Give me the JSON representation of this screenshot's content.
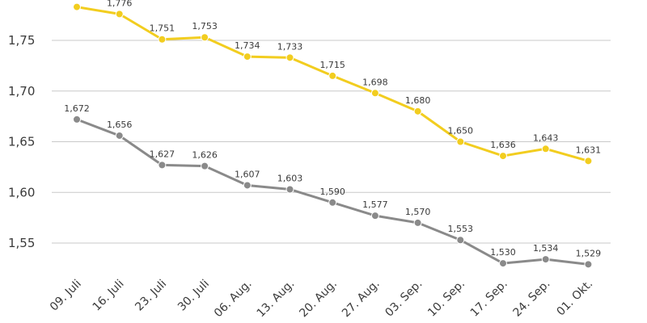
{
  "chart_data": {
    "type": "line",
    "categories": [
      "09. Juli",
      "16. Juli",
      "23. Juli",
      "30. Juli",
      "06. Aug.",
      "13. Aug.",
      "20. Aug.",
      "27. Aug.",
      "03. Sep.",
      "10. Sep.",
      "17. Sep.",
      "24. Sep.",
      "01. Okt."
    ],
    "series": [
      {
        "color": "#f2cd1f",
        "values": [
          1.783,
          1.776,
          1.751,
          1.753,
          1.734,
          1.733,
          1.715,
          1.698,
          1.68,
          1.65,
          1.636,
          1.643,
          1.631
        ],
        "labels": [
          "",
          "1,776",
          "1,751",
          "1,753",
          "1,734",
          "1,733",
          "1,715",
          "1,698",
          "1,680",
          "1,650",
          "1,636",
          "1,643",
          "1,631"
        ]
      },
      {
        "color": "#8a8a8a",
        "values": [
          1.672,
          1.656,
          1.627,
          1.626,
          1.607,
          1.603,
          1.59,
          1.577,
          1.57,
          1.553,
          1.53,
          1.534,
          1.529
        ],
        "labels": [
          "1,672",
          "1,656",
          "1,627",
          "1,626",
          "1,607",
          "1,603",
          "1,590",
          "1,577",
          "1,570",
          "1,553",
          "1,530",
          "1,534",
          "1,529"
        ]
      }
    ],
    "y_ticks": [
      1.55,
      1.6,
      1.65,
      1.7,
      1.75
    ],
    "y_tick_labels": [
      "1,55",
      "1,60",
      "1,65",
      "1,70",
      "1,75"
    ],
    "ylim": [
      1.525,
      1.785
    ],
    "grid": true,
    "title": "",
    "xlabel": "",
    "ylabel": ""
  }
}
